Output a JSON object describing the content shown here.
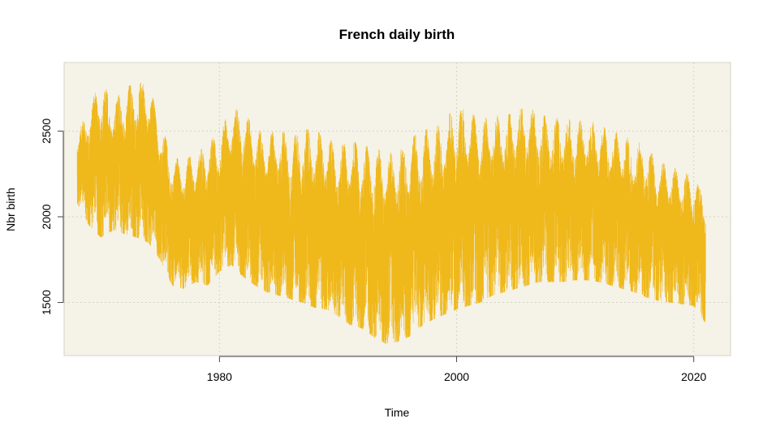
{
  "chart_data": {
    "type": "line",
    "title": "French daily birth",
    "xlabel": "Time",
    "ylabel": "Nbr birth",
    "xlim": [
      1966.9,
      2023.1
    ],
    "ylim": [
      1190,
      2900
    ],
    "x_ticks": [
      1980,
      2000,
      2020
    ],
    "x_tick_labels": [
      "1980",
      "2000",
      "2020"
    ],
    "y_ticks": [
      1500,
      2000,
      2500
    ],
    "y_tick_labels": [
      "1500",
      "2000",
      "2500"
    ],
    "grid": true,
    "legend": "none",
    "series": [
      {
        "frequency": "daily",
        "x_start": 1968.0,
        "x_end": 2021.0,
        "envelope": {
          "x": [
            1968.0,
            1969.0,
            1970.0,
            1971.0,
            1972.0,
            1973.0,
            1974.0,
            1975.0,
            1976.0,
            1977.0,
            1978.0,
            1979.0,
            1980.0,
            1981.0,
            1982.0,
            1983.0,
            1984.0,
            1985.0,
            1986.0,
            1987.0,
            1988.0,
            1989.0,
            1990.0,
            1991.0,
            1992.0,
            1993.0,
            1994.0,
            1995.0,
            1996.0,
            1997.0,
            1998.0,
            1999.0,
            2000.0,
            2001.0,
            2002.0,
            2003.0,
            2004.0,
            2005.0,
            2006.0,
            2007.0,
            2008.0,
            2009.0,
            2010.0,
            2011.0,
            2012.0,
            2013.0,
            2014.0,
            2015.0,
            2016.0,
            2017.0,
            2018.0,
            2019.0,
            2020.0,
            2021.0
          ],
          "high": [
            2480,
            2640,
            2800,
            2680,
            2740,
            2800,
            2780,
            2550,
            2350,
            2330,
            2370,
            2430,
            2500,
            2630,
            2620,
            2520,
            2480,
            2510,
            2470,
            2520,
            2500,
            2480,
            2400,
            2450,
            2420,
            2400,
            2380,
            2400,
            2450,
            2500,
            2520,
            2560,
            2660,
            2620,
            2560,
            2600,
            2580,
            2620,
            2640,
            2600,
            2580,
            2580,
            2560,
            2560,
            2540,
            2500,
            2480,
            2440,
            2420,
            2320,
            2300,
            2260,
            2240,
            2150
          ],
          "low": [
            2080,
            1950,
            1880,
            1920,
            1900,
            1880,
            1850,
            1750,
            1600,
            1580,
            1620,
            1600,
            1680,
            1720,
            1650,
            1600,
            1560,
            1540,
            1520,
            1500,
            1470,
            1460,
            1420,
            1370,
            1350,
            1300,
            1260,
            1270,
            1300,
            1360,
            1400,
            1430,
            1460,
            1480,
            1500,
            1540,
            1560,
            1580,
            1600,
            1620,
            1620,
            1620,
            1630,
            1630,
            1620,
            1600,
            1580,
            1560,
            1530,
            1510,
            1500,
            1490,
            1480,
            1380
          ]
        }
      }
    ]
  },
  "style": {
    "plot_background": "#f5f2e8",
    "plot_border": "#d8d3c2",
    "grid_color": "#d5d3c3",
    "series_color": "#efb81b",
    "axis_color": "#444444",
    "text_color": "#000000"
  }
}
